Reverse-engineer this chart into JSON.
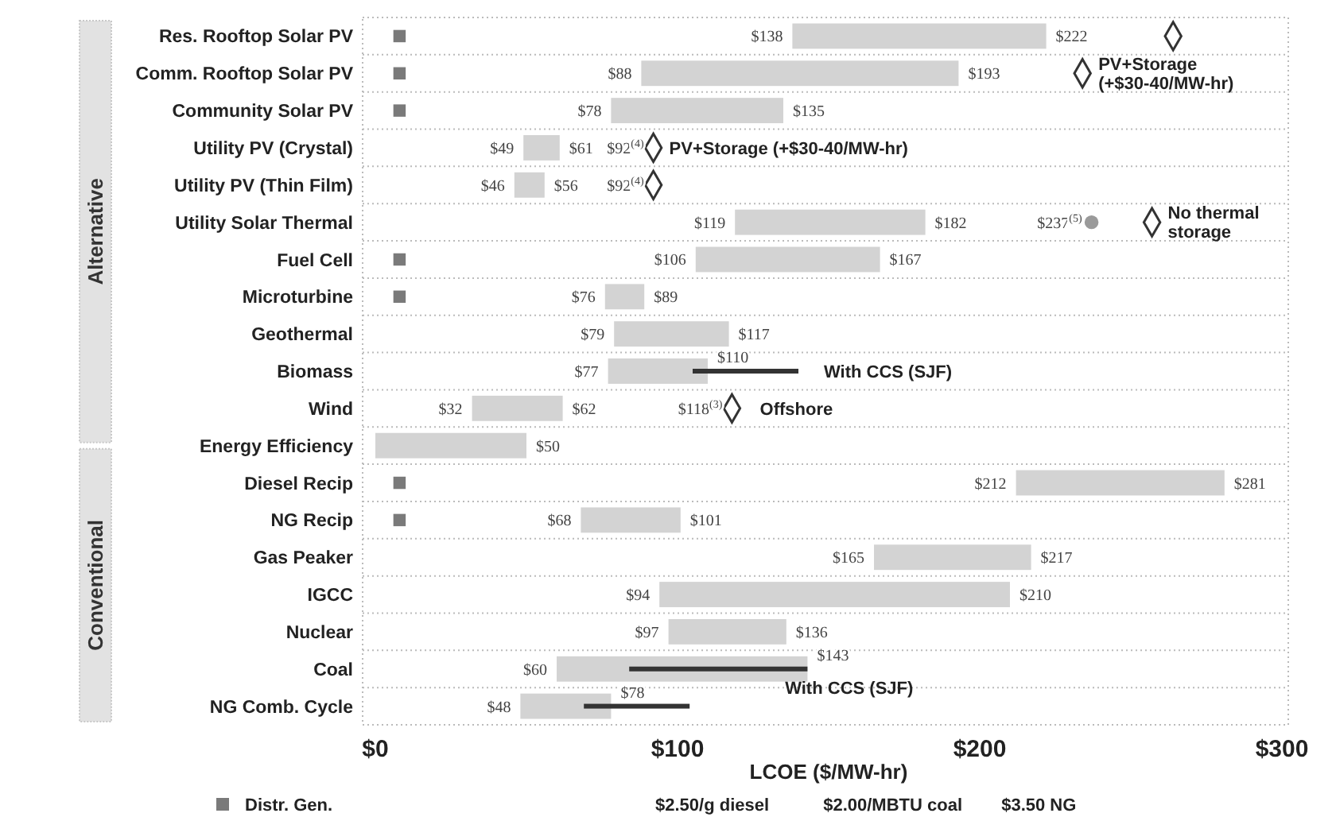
{
  "chart_data": {
    "type": "bar",
    "orientation": "horizontal",
    "xlabel": "LCOE ($/MW-hr)",
    "categories": [
      "Res. Rooftop Solar PV",
      "Comm. Rooftop Solar PV",
      "Community Solar PV",
      "Utility PV (Crystal)",
      "Utility PV (Thin Film)",
      "Utility Solar Thermal",
      "Fuel Cell",
      "Microturbine",
      "Geothermal",
      "Biomass",
      "Wind",
      "Energy Efficiency",
      "Diesel Recip",
      "NG Recip",
      "Gas Peaker",
      "IGCC",
      "Nuclear",
      "Coal",
      "NG Comb. Cycle"
    ],
    "series": [
      {
        "color": "#d3d3d3",
        "base": [
          138,
          88,
          78,
          49,
          46,
          119,
          106,
          76,
          79,
          77,
          32,
          0,
          212,
          68,
          165,
          94,
          97,
          60,
          48
        ],
        "values": [
          84,
          105,
          57,
          12,
          10,
          63,
          61,
          13,
          38,
          33,
          30,
          50,
          69,
          33,
          52,
          116,
          39,
          83,
          30
        ]
      },
      {
        "color": "#333333",
        "base": [
          null,
          null,
          null,
          null,
          null,
          null,
          null,
          null,
          null,
          105,
          null,
          null,
          null,
          null,
          null,
          null,
          null,
          84,
          69
        ],
        "values": [
          null,
          null,
          null,
          null,
          null,
          null,
          null,
          null,
          null,
          35,
          null,
          null,
          null,
          null,
          null,
          null,
          null,
          59,
          35
        ]
      },
      {
        "type": "scatter",
        "name": "Distr. Gen.",
        "color": "#7a7a7a",
        "marker": "square",
        "values": [
          8,
          8,
          8,
          null,
          null,
          null,
          8,
          8,
          null,
          null,
          null,
          null,
          8,
          8,
          null,
          null,
          null,
          null,
          null
        ]
      },
      {
        "type": "scatter",
        "color": "#333333",
        "marker": "diamond",
        "values": [
          264,
          234,
          null,
          92,
          92,
          257,
          null,
          null,
          null,
          null,
          118,
          null,
          null,
          null,
          null,
          null,
          null,
          null,
          null
        ]
      },
      {
        "type": "scatter",
        "color": "#9a9a9a",
        "marker": "circle",
        "values": [
          null,
          null,
          null,
          null,
          null,
          237,
          null,
          null,
          null,
          null,
          null,
          null,
          null,
          null,
          null,
          null,
          null,
          null,
          null
        ]
      }
    ],
    "xlim": [
      0,
      300
    ],
    "xticks": [
      {
        "value": 0,
        "label": "$0"
      },
      {
        "value": 100,
        "label": "$100"
      },
      {
        "value": 200,
        "label": "$200"
      },
      {
        "value": 300,
        "label": "$300"
      }
    ],
    "grid": "y",
    "legend": "bottom left",
    "annotations": [
      "Alternative",
      "Conventional",
      "With CCS (SJF)",
      "With CCS (SJF)",
      "$2.50/g diesel",
      "$2.00/MBTU coal",
      "$3.50 NG",
      {
        "text": "$138",
        "x": 138,
        "y": "Res. Rooftop Solar PV"
      },
      {
        "text": "$222",
        "x": 222,
        "y": "Res. Rooftop Solar PV"
      },
      {
        "text": "$88",
        "x": 88,
        "y": "Comm. Rooftop Solar PV"
      },
      {
        "text": "$193",
        "x": 193,
        "y": "Comm. Rooftop Solar PV"
      },
      {
        "text": "PV+Storage (+$30-40/MW-hr)",
        "x": 234,
        "y": "Comm. Rooftop Solar PV"
      },
      {
        "text": "$78",
        "x": 78,
        "y": "Community Solar PV"
      },
      {
        "text": "$135",
        "x": 135,
        "y": "Community Solar PV"
      },
      {
        "text": "$49",
        "x": 49,
        "y": "Utility PV (Crystal)"
      },
      {
        "text": "$61",
        "x": 61,
        "y": "Utility PV (Crystal)"
      },
      {
        "text": "$92$^{(4)}$",
        "x": 92,
        "y": "Utility PV (Crystal)"
      },
      {
        "text": "PV+Storage (+$30-40/MW-hr)",
        "x": 92,
        "y": "Utility PV (Crystal)"
      },
      {
        "text": "$46",
        "x": 46,
        "y": "Utility PV (Thin Film)"
      },
      {
        "text": "$56",
        "x": 56,
        "y": "Utility PV (Thin Film)"
      },
      {
        "text": "$92$^{(4)}$",
        "x": 92,
        "y": "Utility PV (Thin Film)"
      },
      {
        "text": "$119",
        "x": 119,
        "y": "Utility Solar Thermal"
      },
      {
        "text": "$182",
        "x": 182,
        "y": "Utility Solar Thermal"
      },
      {
        "text": "$237$^{(5)}$",
        "x": 237,
        "y": "Utility Solar Thermal"
      },
      {
        "text": "No thermal storage",
        "x": 257,
        "y": "Utility Solar Thermal"
      },
      {
        "text": "$106",
        "x": 106,
        "y": "Fuel Cell"
      },
      {
        "text": "$167",
        "x": 167,
        "y": "Fuel Cell"
      },
      {
        "text": "$76",
        "x": 76,
        "y": "Microturbine"
      },
      {
        "text": "$89",
        "x": 89,
        "y": "Microturbine"
      },
      {
        "text": "$79",
        "x": 79,
        "y": "Geothermal"
      },
      {
        "text": "$117",
        "x": 117,
        "y": "Geothermal"
      },
      {
        "text": "$77",
        "x": 77,
        "y": "Biomass"
      },
      {
        "text": "$110",
        "x": 110,
        "y": "Biomass"
      },
      {
        "text": "$32",
        "x": 32,
        "y": "Wind"
      },
      {
        "text": "$62",
        "x": 62,
        "y": "Wind"
      },
      {
        "text": "$118$^{(3)}$",
        "x": 118,
        "y": "Wind"
      },
      {
        "text": "Offshore",
        "x": 122,
        "y": "Wind"
      },
      {
        "text": "$50",
        "x": 50,
        "y": "Energy Efficiency"
      },
      {
        "text": "$212",
        "x": 212,
        "y": "Diesel Recip"
      },
      {
        "text": "$281",
        "x": 281,
        "y": "Diesel Recip"
      },
      {
        "text": "$68",
        "x": 68,
        "y": "NG Recip"
      },
      {
        "text": "$101",
        "x": 101,
        "y": "NG Recip"
      },
      {
        "text": "$165",
        "x": 165,
        "y": "Gas Peaker"
      },
      {
        "text": "$217",
        "x": 217,
        "y": "Gas Peaker"
      },
      {
        "text": "$94",
        "x": 94,
        "y": "IGCC"
      },
      {
        "text": "$210",
        "x": 210,
        "y": "IGCC"
      },
      {
        "text": "$97",
        "x": 97,
        "y": "Nuclear"
      },
      {
        "text": "$136",
        "x": 136,
        "y": "Nuclear"
      },
      {
        "text": "$60",
        "x": 60,
        "y": "Coal"
      },
      {
        "text": "$143",
        "x": 143,
        "y": "Coal"
      },
      {
        "text": "$48",
        "x": 48,
        "y": "NG Comb. Cycle"
      },
      {
        "text": "$78",
        "x": 78,
        "y": "NG Comb. Cycle"
      }
    ]
  }
}
